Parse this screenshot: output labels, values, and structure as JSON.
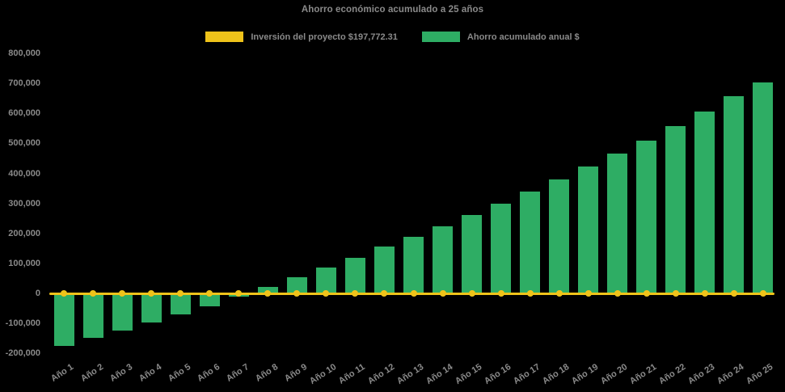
{
  "app": {
    "background": "#000000"
  },
  "chart": {
    "title": "Ahorro económico acumulado a 25 años",
    "legend": {
      "items": [
        {
          "label": "Inversión del proyecto $197,772.31",
          "color": "#EFC31A",
          "series_type": "line"
        },
        {
          "label": "Ahorro acumulado anual $",
          "color": "#2EAD64",
          "series_type": "bar"
        }
      ]
    }
  },
  "chart_data": {
    "type": "bar",
    "title": "Ahorro económico acumulado a 25 años",
    "categories": [
      "Año 1",
      "Año 2",
      "Año 3",
      "Año 4",
      "Año 5",
      "Año 6",
      "Año 7",
      "Año 8",
      "Año 9",
      "Año 10",
      "Año 11",
      "Año 12",
      "Año 13",
      "Año 14",
      "Año 15",
      "Año 16",
      "Año 17",
      "Año 18",
      "Año 19",
      "Año 20",
      "Año 21",
      "Año 22",
      "Año 23",
      "Año 24",
      "Año 25"
    ],
    "series": [
      {
        "name": "Inversión del proyecto $197,772.31",
        "type": "line",
        "color": "#EFC31A",
        "marker": "circle",
        "values": [
          0,
          0,
          0,
          0,
          0,
          0,
          0,
          0,
          0,
          0,
          0,
          0,
          0,
          0,
          0,
          0,
          0,
          0,
          0,
          0,
          0,
          0,
          0,
          0,
          0
        ]
      },
      {
        "name": "Ahorro acumulado anual $",
        "type": "bar",
        "color": "#2EAD64",
        "values": [
          -174000,
          -148000,
          -123000,
          -96000,
          -69000,
          -42000,
          -10000,
          21000,
          53000,
          87000,
          120000,
          156000,
          188000,
          224000,
          262000,
          300000,
          339000,
          380000,
          422000,
          467000,
          510000,
          557000,
          606000,
          656000,
          704000
        ]
      }
    ],
    "xlabel": "",
    "ylabel": "",
    "ylim": [
      -200000,
      800000
    ],
    "yticks": [
      800000,
      700000,
      600000,
      500000,
      400000,
      300000,
      200000,
      100000,
      0,
      -100000,
      -200000
    ],
    "ytick_labels": [
      "800,000",
      "700,000",
      "600,000",
      "500,000",
      "400,000",
      "300,000",
      "200,000",
      "100,000",
      "0",
      "-100,000",
      "-200,000"
    ],
    "grid": false,
    "legend_position": "top-center",
    "background": "#000000",
    "text_color": "#8a8a8a"
  }
}
